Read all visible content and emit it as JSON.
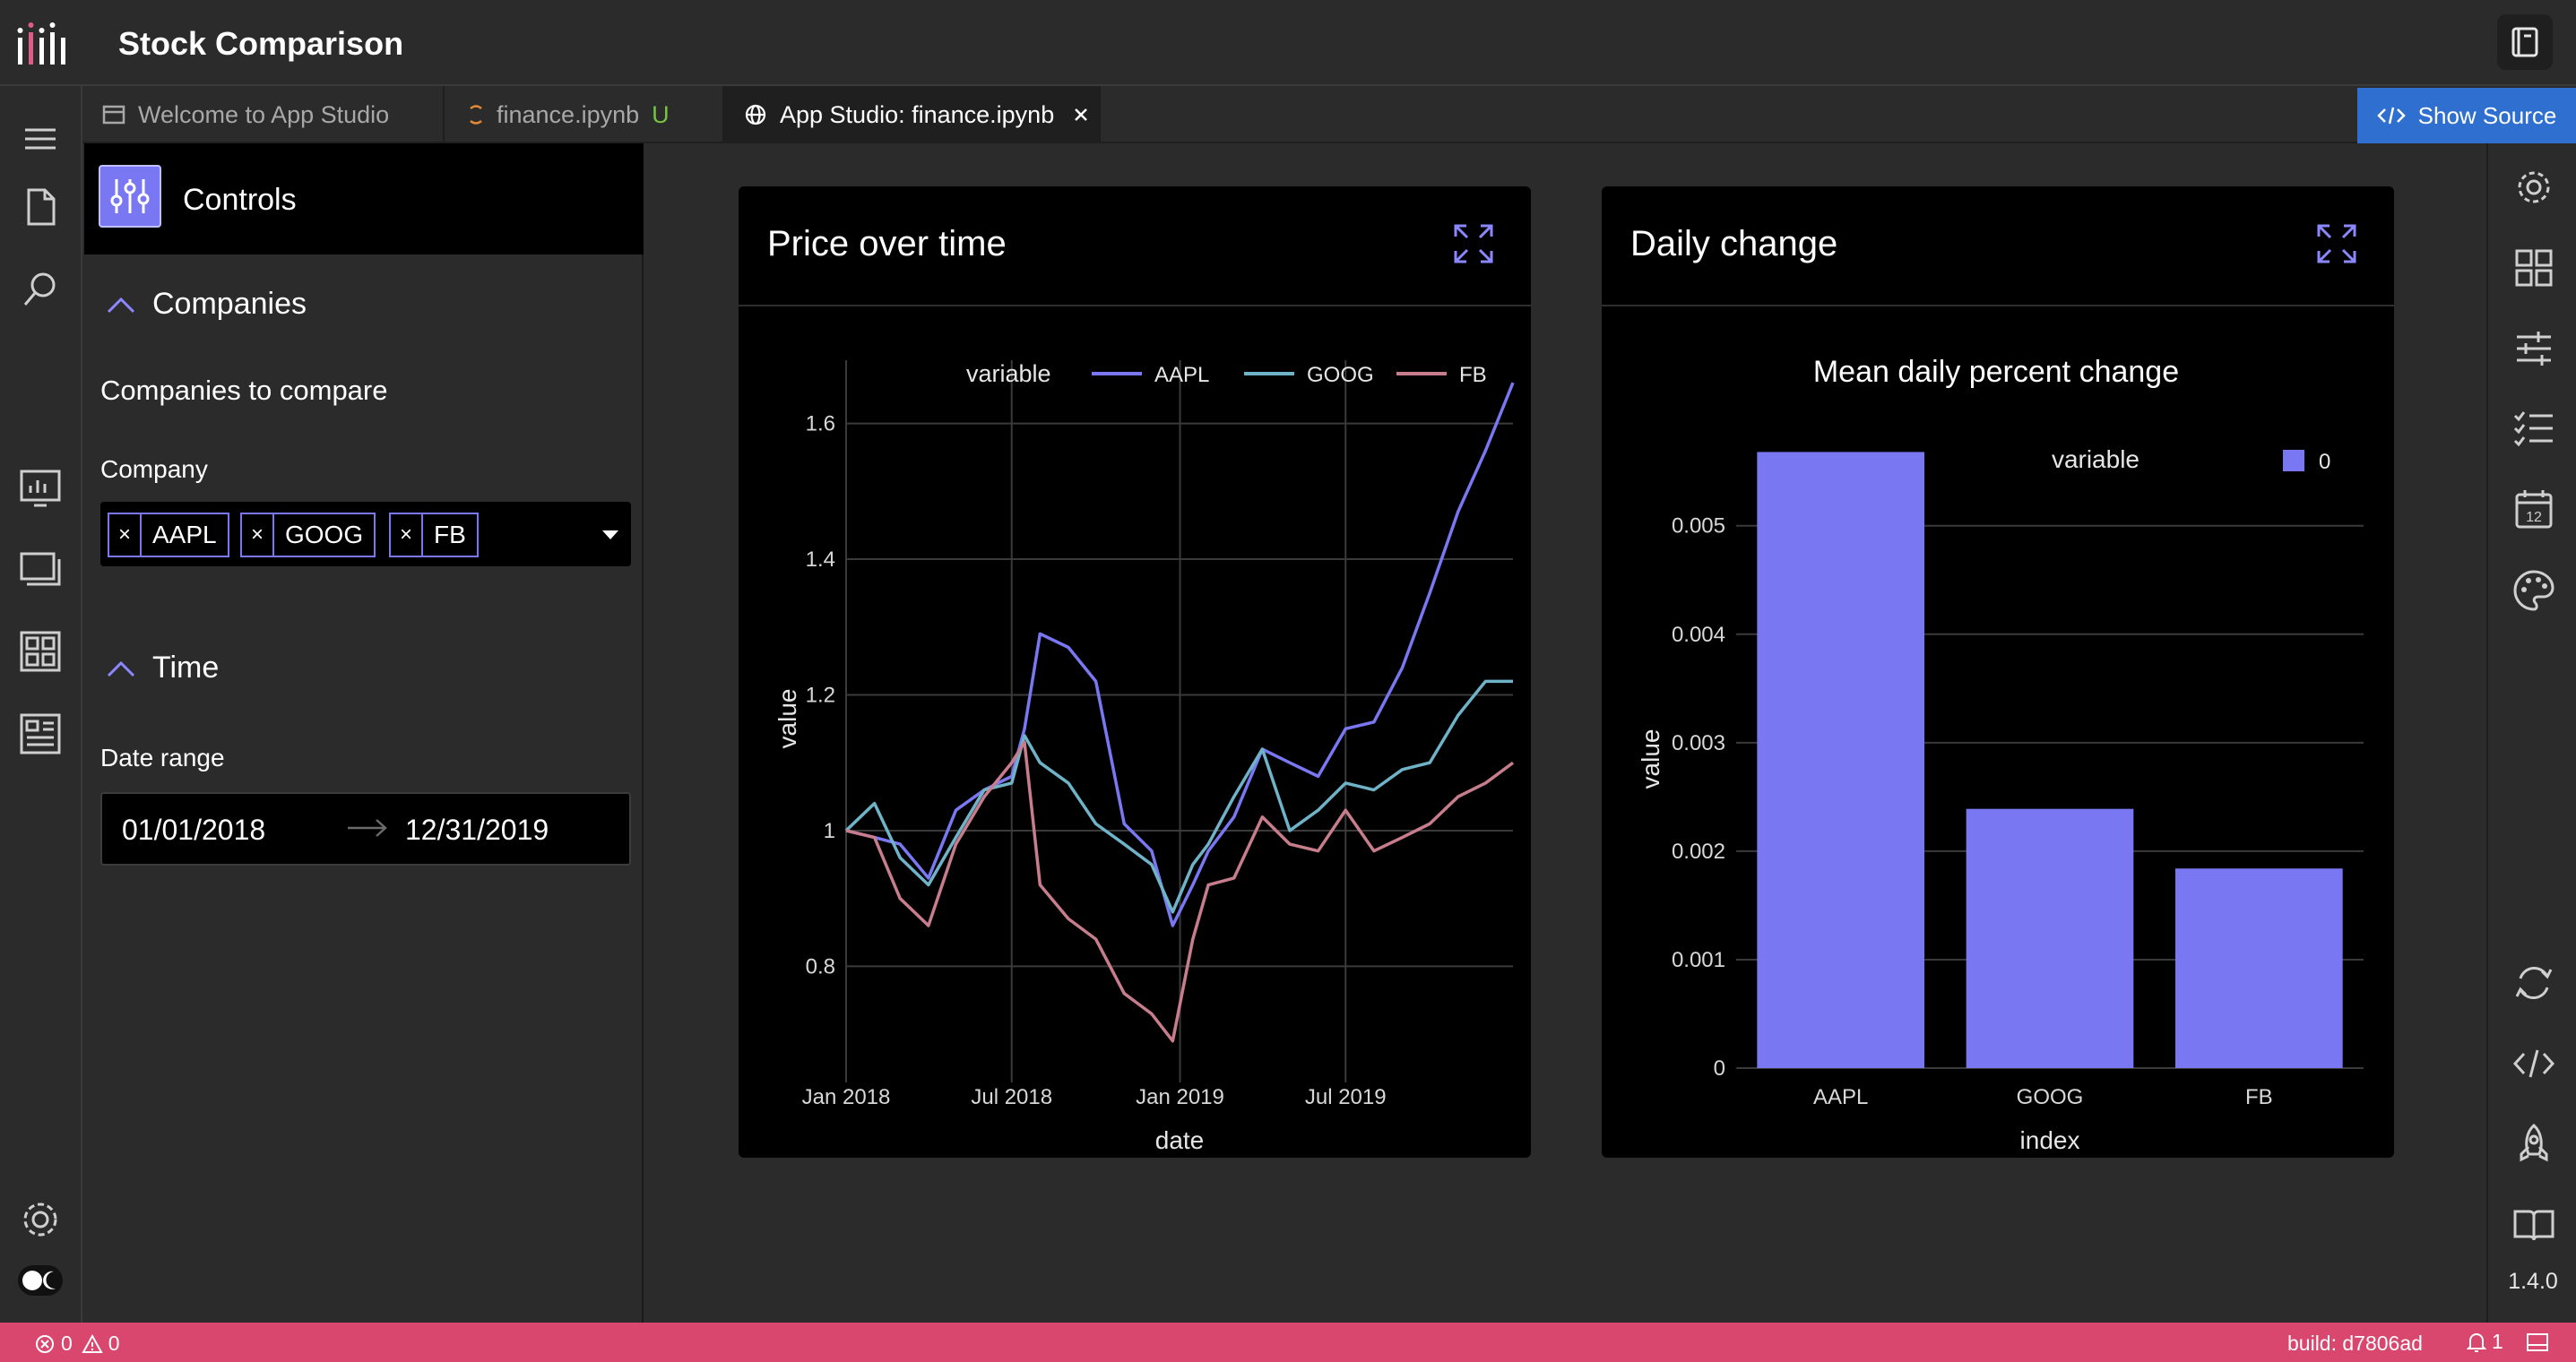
{
  "app": {
    "title": "Stock Comparison"
  },
  "tabs": [
    {
      "label": "Welcome to App Studio"
    },
    {
      "label": "finance.ipynb",
      "badge": "U"
    },
    {
      "label": "App Studio: finance.ipynb"
    }
  ],
  "show_source": {
    "label": "Show Source"
  },
  "controls": {
    "title": "Controls",
    "companies_section": {
      "heading": "Companies",
      "subtitle": "Companies to compare",
      "field_label": "Company",
      "selected": [
        "AAPL",
        "GOOG",
        "FB"
      ],
      "remove_glyph": "×"
    },
    "time_section": {
      "heading": "Time",
      "field_label": "Date range",
      "start": "01/01/2018",
      "end": "12/31/2019"
    }
  },
  "cards": {
    "price": {
      "title": "Price over time"
    },
    "daily": {
      "title": "Daily change"
    }
  },
  "chart_data": [
    {
      "type": "line",
      "title": "",
      "xlabel": "date",
      "ylabel": "value",
      "legend_title": "variable",
      "legend_position": "top",
      "x_ticks": [
        "Jan 2018",
        "Jul 2018",
        "Jan 2019",
        "Jul 2019"
      ],
      "y_ticks": [
        "0.8",
        "1",
        "1.2",
        "1.4",
        "1.6"
      ],
      "xlim": [
        "2018-01-01",
        "2019-12-31"
      ],
      "ylim": [
        0.65,
        1.68
      ],
      "grid": true,
      "x": [
        "2018-01-01",
        "2018-02-01",
        "2018-03-01",
        "2018-04-01",
        "2018-05-01",
        "2018-06-01",
        "2018-07-01",
        "2018-07-15",
        "2018-08-01",
        "2018-09-01",
        "2018-10-01",
        "2018-11-01",
        "2018-12-01",
        "2018-12-24",
        "2019-01-15",
        "2019-02-01",
        "2019-03-01",
        "2019-04-01",
        "2019-05-01",
        "2019-06-01",
        "2019-07-01",
        "2019-08-01",
        "2019-09-01",
        "2019-10-01",
        "2019-11-01",
        "2019-12-01",
        "2019-12-31"
      ],
      "series": [
        {
          "name": "AAPL",
          "color": "#7a77f2",
          "values": [
            1.0,
            0.99,
            0.98,
            0.93,
            1.03,
            1.06,
            1.08,
            1.15,
            1.29,
            1.27,
            1.22,
            1.01,
            0.97,
            0.86,
            0.92,
            0.97,
            1.02,
            1.12,
            1.1,
            1.08,
            1.15,
            1.16,
            1.24,
            1.35,
            1.47,
            1.56,
            1.66
          ]
        },
        {
          "name": "GOOG",
          "color": "#6fb3c9",
          "values": [
            1.0,
            1.04,
            0.96,
            0.92,
            0.99,
            1.06,
            1.07,
            1.14,
            1.1,
            1.07,
            1.01,
            0.98,
            0.95,
            0.88,
            0.95,
            0.98,
            1.05,
            1.12,
            1.0,
            1.03,
            1.07,
            1.06,
            1.09,
            1.1,
            1.17,
            1.22,
            1.22
          ]
        },
        {
          "name": "FB",
          "color": "#c87d8d",
          "values": [
            1.0,
            0.99,
            0.9,
            0.86,
            0.98,
            1.05,
            1.1,
            1.13,
            0.92,
            0.87,
            0.84,
            0.76,
            0.73,
            0.69,
            0.84,
            0.92,
            0.93,
            1.02,
            0.98,
            0.97,
            1.03,
            0.97,
            0.99,
            1.01,
            1.05,
            1.07,
            1.1
          ]
        }
      ]
    },
    {
      "type": "bar",
      "title": "Mean daily percent change",
      "xlabel": "index",
      "ylabel": "value",
      "legend_title": "variable",
      "legend_position": "top-right",
      "categories": [
        "AAPL",
        "GOOG",
        "FB"
      ],
      "y_ticks": [
        "0",
        "0.001",
        "0.002",
        "0.003",
        "0.004",
        "0.005"
      ],
      "ylim": [
        0,
        0.0057
      ],
      "grid": true,
      "series": [
        {
          "name": "0",
          "color": "#7a77f2",
          "values": [
            0.00568,
            0.00239,
            0.00184
          ]
        }
      ]
    }
  ],
  "statusbar": {
    "errors": "0",
    "warnings": "0",
    "build": "build: d7806ad",
    "notifications": "1"
  },
  "rightbar": {
    "version": "1.4.0"
  },
  "icons": {
    "left": [
      "menu-icon",
      "file-icon",
      "search-icon",
      "dashboard-icon",
      "slides-icon",
      "grid-layout-icon",
      "report-icon",
      "settings-icon",
      "theme-toggle-icon"
    ],
    "right": [
      "settings-icon",
      "widgets-icon",
      "sliders-icon",
      "checklist-icon",
      "calendar-icon",
      "palette-icon",
      "refresh-icon",
      "code-icon",
      "rocket-icon",
      "book-icon"
    ]
  }
}
